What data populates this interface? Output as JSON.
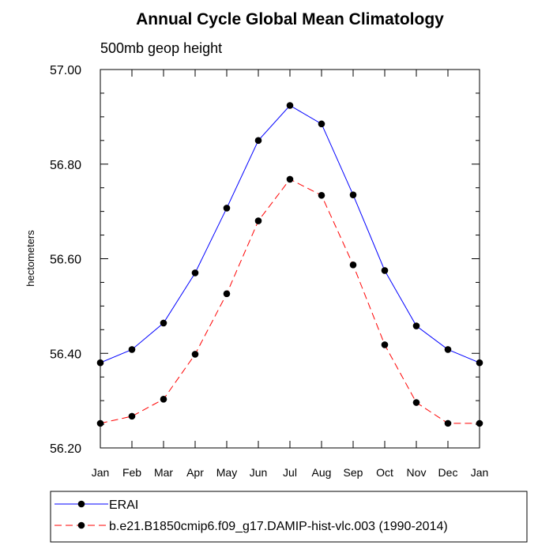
{
  "chart_data": {
    "type": "line",
    "title": "Annual Cycle Global Mean Climatology",
    "subtitle": "500mb geop height",
    "ylabel": "hectometers",
    "xlabel": "",
    "categories": [
      "Jan",
      "Feb",
      "Mar",
      "Apr",
      "May",
      "Jun",
      "Jul",
      "Aug",
      "Sep",
      "Oct",
      "Nov",
      "Dec",
      "Jan"
    ],
    "ylim": [
      56.2,
      57.0
    ],
    "yticks": [
      "56.20",
      "56.40",
      "56.60",
      "56.80",
      "57.00"
    ],
    "grid": false,
    "legend_position": "bottom",
    "series": [
      {
        "name": "ERAI",
        "color": "#0000ff",
        "line_style": "solid",
        "marker": "filled-circle",
        "values": [
          56.38,
          56.408,
          56.464,
          56.57,
          56.707,
          56.85,
          56.924,
          56.885,
          56.735,
          56.575,
          56.458,
          56.408,
          56.38
        ]
      },
      {
        "name": "b.e21.B1850cmip6.f09_g17.DAMIP-hist-vlc.003 (1990-2014)",
        "color": "#ff0000",
        "line_style": "dashed",
        "marker": "filled-circle",
        "values": [
          56.252,
          56.267,
          56.303,
          56.398,
          56.526,
          56.68,
          56.768,
          56.734,
          56.587,
          56.418,
          56.296,
          56.252,
          56.252
        ]
      }
    ]
  }
}
